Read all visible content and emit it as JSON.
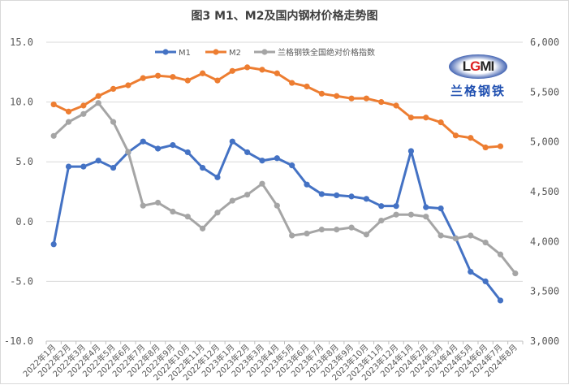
{
  "chart_data": {
    "type": "line",
    "title": "图3 M1、M2及国内钢材价格走势图",
    "categories": [
      "2022年1月",
      "2022年2月",
      "2022年3月",
      "2022年4月",
      "2022年5月",
      "2022年6月",
      "2022年7月",
      "2022年8月",
      "2022年9月",
      "2022年10月",
      "2022年11月",
      "2022年12月",
      "2023年1月",
      "2023年2月",
      "2023年3月",
      "2023年4月",
      "2023年5月",
      "2023年6月",
      "2023年7月",
      "2023年8月",
      "2023年9月",
      "2023年10月",
      "2023年11月",
      "2023年12月",
      "2024年1月",
      "2024年2月",
      "2024年3月",
      "2024年4月",
      "2024年5月",
      "2024年6月",
      "2024年7月",
      "2024年8月"
    ],
    "left_axis": {
      "ylim": [
        -10,
        15
      ],
      "ticks": [
        "15.0",
        "10.0",
        "5.0",
        "0.0",
        "-5.0",
        "-10.0"
      ],
      "tick_values": [
        15,
        10,
        5,
        0,
        -5,
        -10
      ]
    },
    "right_axis": {
      "ylim": [
        3000,
        6000
      ],
      "ticks": [
        "6,000",
        "5,500",
        "5,000",
        "4,500",
        "4,000",
        "3,500",
        "3,000"
      ],
      "tick_values": [
        6000,
        5500,
        5000,
        4500,
        4000,
        3500,
        3000
      ]
    },
    "grid": true,
    "legend_position": "top",
    "series": [
      {
        "name": "M1",
        "axis": "left",
        "color": "#4472c4",
        "values": [
          -1.9,
          4.6,
          4.6,
          5.1,
          4.5,
          5.8,
          6.7,
          6.1,
          6.4,
          5.8,
          4.5,
          3.7,
          6.7,
          5.8,
          5.1,
          5.3,
          4.7,
          3.1,
          2.3,
          2.2,
          2.1,
          1.9,
          1.3,
          1.3,
          5.9,
          1.2,
          1.1,
          -1.4,
          -4.2,
          -5.0,
          -6.6,
          null
        ]
      },
      {
        "name": "M2",
        "axis": "left",
        "color": "#ed7d31",
        "values": [
          9.8,
          9.2,
          9.7,
          10.5,
          11.1,
          11.4,
          12.0,
          12.2,
          12.1,
          11.8,
          12.4,
          11.8,
          12.6,
          12.9,
          12.7,
          12.4,
          11.6,
          11.3,
          10.7,
          10.5,
          10.3,
          10.3,
          10.0,
          9.7,
          8.7,
          8.7,
          8.3,
          7.2,
          7.0,
          6.2,
          6.3,
          null
        ]
      },
      {
        "name": "兰格钢铁全国绝对价格指数",
        "axis": "right",
        "color": "#a5a5a5",
        "values": [
          5060,
          5200,
          5280,
          5390,
          5200,
          4900,
          4360,
          4390,
          4300,
          4250,
          4130,
          4290,
          4410,
          4470,
          4580,
          4360,
          4060,
          4080,
          4120,
          4120,
          4140,
          4070,
          4210,
          4270,
          4270,
          4250,
          4060,
          4030,
          4060,
          3990,
          3870,
          3680
        ]
      }
    ]
  },
  "logo": {
    "text": "LGMI",
    "text_cn": "兰格钢铁"
  }
}
